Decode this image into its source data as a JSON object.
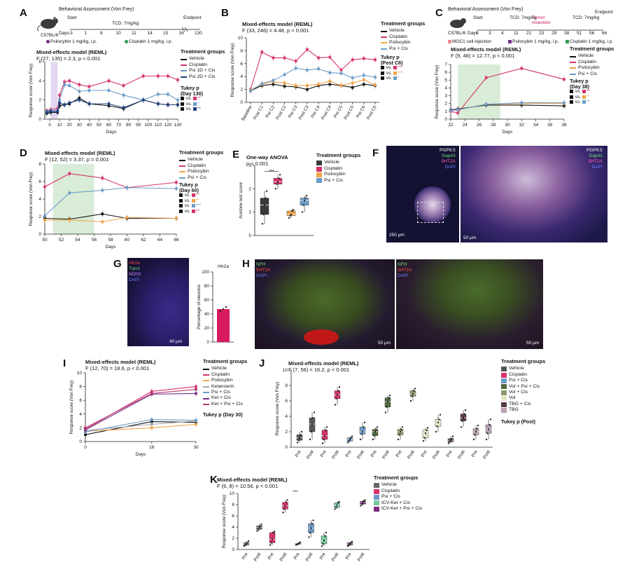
{
  "panels": {
    "A": {
      "letter": "A",
      "header": "Behavioral Assessment (Von Frey)",
      "strain": "C57BL/6",
      "timeline_words": {
        "start": "Start",
        "days": "Days",
        "tcd": "TCD: 7mg/kg",
        "endpoint": "Endpoint"
      },
      "timeline_days": [
        "-3",
        "1",
        "8",
        "10",
        "11",
        "14",
        "15",
        "16",
        "130"
      ],
      "injections": [
        "Psilocybin 1 mg/kg, i.p.",
        "Cisplatin 1 mg/kg, i.p."
      ],
      "stat_title": "Mixed-effects model (REML)",
      "stat_line": "F (27, 135) = 2.3, p < 0.001",
      "legend_title": "Treatment groups",
      "tukey_title": "Tukey p",
      "tukey_sub": "(Day 130)",
      "tukey_rows": [
        [
          "vs.",
          "**"
        ],
        [
          "vs.",
          "*"
        ],
        [
          "vs.",
          "**"
        ]
      ],
      "colors": [
        "#111111",
        "#d6336c",
        "#6b9bc8",
        "#1f3f7a"
      ]
    },
    "B": {
      "letter": "B",
      "stat_title": "Mixed-effects model (REML)",
      "stat_line": "F (33, 246) = 4.48, p < 0.001",
      "legend_title": "Treatment groups",
      "tukey_title": "Tukey p",
      "tukey_sub": "(Post C6)",
      "tukey_rows": [
        [
          "vs.",
          "***"
        ],
        [
          "vs.",
          "***"
        ],
        [
          "vs.",
          "*"
        ]
      ]
    },
    "C": {
      "letter": "C",
      "header": "Behavioral Assessment (Von Frey)",
      "strain": "C57BL/6",
      "timeline_words": {
        "start": "Start",
        "days": "Days",
        "tcd": "TCD: 7mg/kg",
        "tumor": "Tumor resection",
        "tcd2": "TCD: 7mg/kg",
        "endpoint": "Endpoint"
      },
      "timeline_days": [
        "0",
        "3",
        "4",
        "11",
        "21",
        "23",
        "29",
        "38",
        "51",
        "56",
        "66"
      ],
      "injections": [
        "MOC1 cell injection",
        "Psilocybin 1 mg/kg, i.p.",
        "Cisplatin 1 mg/kg, i.p."
      ],
      "stat_title": "Mixed-effects model (REML)",
      "stat_line": "F (9, 48) = 12.77, p < 0.001",
      "legend_title": "Treatment groups",
      "tukey_title": "Tukey p",
      "tukey_sub": "(Day 38)",
      "tukey_rows": [
        [
          "vs.",
          "**"
        ],
        [
          "vs.",
          "**"
        ],
        [
          "vs.",
          "**"
        ]
      ]
    },
    "D": {
      "letter": "D",
      "stat_title": "Mixed-effects model (REML)",
      "stat_line": "F (12, 52) = 3.37, p = 0.001",
      "legend_title": "Treatment groups",
      "tukey_title": "Tukey p",
      "tukey_sub": "(Day 60)",
      "tukey_rows": [
        [
          "vs.",
          "**"
        ],
        [
          "vs.",
          "**"
        ],
        [
          "vs.",
          "***"
        ],
        [
          "vs.",
          "**"
        ]
      ]
    },
    "E": {
      "letter": "E",
      "stat_title": "One-way ANOVA",
      "stat_line": "p < 0.001",
      "legend_title": "Treatment groups",
      "sig": "***"
    },
    "F": {
      "letter": "F",
      "labels": [
        "PGP9.5",
        "Gap43",
        "5HT2A",
        "DAPI"
      ],
      "scale_left": "250 μm",
      "scale_right": "50 μm"
    },
    "G": {
      "letter": "G",
      "labels": [
        "Htr2a",
        "Trpv1",
        "Nf200",
        "DAPI"
      ],
      "scale": "40 μm"
    },
    "H": {
      "letter": "H",
      "labels": [
        "NFH",
        "5HT2A",
        "DAPI"
      ],
      "scale": "50 μm"
    },
    "I": {
      "letter": "I",
      "stat_title": "Mixed-effects model (REML)",
      "stat_line": "F (12, 70) = 18.6, p < 0.001",
      "legend_title": "Treatment groups",
      "tukey_title": "Tukey p (Day 30)"
    },
    "J": {
      "letter": "J",
      "stat_title": "Mixed-effects model (REML)",
      "stat_line": "F (7, 56) = 16.2, p < 0.001",
      "legend_title": "Treatment groups",
      "tukey_title": "Tukey p (Post)"
    },
    "K": {
      "letter": "K",
      "stat_title": "Mixed-effects model (REML)",
      "stat_line": "F (6, 8) = 10.56, p < 0.001",
      "legend_title": "Treatment groups",
      "sig": "***"
    }
  },
  "chart_data": [
    {
      "id": "A",
      "type": "line",
      "xlabel": "Days",
      "ylabel": "Response score (Von Frey)",
      "xlim": [
        -5,
        130
      ],
      "ylim": [
        0,
        6
      ],
      "x": [
        -3,
        1,
        8,
        10,
        15,
        20,
        30,
        40,
        60,
        75,
        95,
        110,
        120,
        130
      ],
      "xticks": [
        0,
        10,
        20,
        30,
        40,
        50,
        60,
        70,
        80,
        90,
        100,
        110,
        120,
        130
      ],
      "yticks": [
        0,
        2,
        4,
        6
      ],
      "shade": [
        1,
        8
      ],
      "series": [
        {
          "name": "Vehicle",
          "color": "#111111",
          "values": [
            0.6,
            0.7,
            0.7,
            1.4,
            1.5,
            1.6,
            2.2,
            1.6,
            1.4,
            1.1,
            2.0,
            1.6,
            1.5,
            1.5
          ]
        },
        {
          "name": "Cisplatin",
          "color": "#d6336c",
          "values": [
            0.9,
            1.0,
            1.1,
            2.5,
            3.9,
            4.0,
            3.6,
            3.4,
            4.0,
            3.5,
            4.5,
            4.5,
            4.5,
            4.1
          ]
        },
        {
          "name": "Psi 1D + Cis",
          "color": "#6b9bc8",
          "values": [
            0.8,
            0.9,
            0.9,
            2.0,
            3.6,
            3.5,
            2.9,
            3.0,
            3.0,
            2.5,
            2.0,
            2.6,
            2.6,
            2.0
          ]
        },
        {
          "name": "Psi 2D + Cis",
          "color": "#1f3f7a",
          "values": [
            0.7,
            0.8,
            0.8,
            1.7,
            1.5,
            1.7,
            2.0,
            1.6,
            1.6,
            1.2,
            2.0,
            1.6,
            1.5,
            1.5
          ]
        }
      ]
    },
    {
      "id": "B",
      "type": "line",
      "ylabel": "Response score (Von Frey)",
      "ylim": [
        0,
        10
      ],
      "categories": [
        "Baseline",
        "Post C1",
        "Pre C2",
        "Post C2",
        "Pre C3",
        "Post C3",
        "Pre C4",
        "Post C4",
        "Pre C5",
        "Post C5",
        "Pre C6",
        "Post C6"
      ],
      "yticks": [
        0,
        2,
        4,
        6,
        8,
        10
      ],
      "series": [
        {
          "name": "Vehicle",
          "color": "#111111",
          "values": [
            1.8,
            2.6,
            2.8,
            2.5,
            2.4,
            2.0,
            2.6,
            2.8,
            2.6,
            2.3,
            2.8,
            2.6
          ]
        },
        {
          "name": "Cisplatin",
          "color": "#d6336c",
          "values": [
            2.0,
            7.8,
            6.9,
            6.9,
            6.4,
            8.2,
            6.9,
            7.0,
            5.0,
            6.6,
            6.8,
            6.6
          ]
        },
        {
          "name": "Psilocybin",
          "color": "#f0a44a",
          "values": [
            1.9,
            2.8,
            3.2,
            3.0,
            2.6,
            2.6,
            2.8,
            3.3,
            2.6,
            3.0,
            3.5,
            2.7
          ]
        },
        {
          "name": "Psi + Cis",
          "color": "#6b9bc8",
          "values": [
            1.8,
            2.9,
            3.4,
            4.3,
            5.3,
            5.0,
            5.2,
            4.6,
            4.5,
            3.8,
            4.2,
            3.9
          ]
        }
      ]
    },
    {
      "id": "C",
      "type": "line",
      "xlabel": "Days",
      "ylabel": "Response score (Von Frey)",
      "xlim": [
        22,
        38
      ],
      "ylim": [
        0,
        7
      ],
      "x": [
        22,
        23,
        27,
        32,
        38
      ],
      "xticks": [
        22,
        24,
        26,
        28,
        30,
        32,
        34,
        36,
        38
      ],
      "yticks": [
        0,
        1,
        2,
        3,
        4,
        5,
        6,
        7
      ],
      "shade": [
        23,
        29
      ],
      "series": [
        {
          "name": "Vehicle",
          "color": "#111111",
          "values": [
            1.2,
            1.3,
            1.8,
            1.8,
            1.7
          ]
        },
        {
          "name": "Cisplatin",
          "color": "#d6336c",
          "values": [
            1.0,
            0.8,
            5.3,
            6.5,
            5.1
          ]
        },
        {
          "name": "Psilocybin",
          "color": "#f0a44a",
          "values": [
            1.1,
            1.2,
            1.9,
            2.0,
            2.0
          ]
        },
        {
          "name": "Psi + Cis",
          "color": "#6b9bc8",
          "values": [
            1.1,
            1.2,
            1.9,
            2.1,
            2.1
          ]
        }
      ]
    },
    {
      "id": "D",
      "type": "line",
      "xlabel": "Days",
      "ylabel": "Response score (Von Frey)",
      "xlim": [
        50,
        66
      ],
      "ylim": [
        0,
        8
      ],
      "x": [
        50,
        53,
        57,
        60,
        66
      ],
      "xticks": [
        50,
        52,
        54,
        56,
        58,
        60,
        62,
        64,
        66
      ],
      "yticks": [
        0,
        2,
        4,
        6,
        8
      ],
      "shade": [
        51,
        56
      ],
      "series": [
        {
          "name": "Vehicle",
          "color": "#111111",
          "values": [
            1.8,
            1.7,
            2.3,
            1.8,
            1.8
          ]
        },
        {
          "name": "Cisplatin",
          "color": "#d6336c",
          "values": [
            5.4,
            6.9,
            6.4,
            5.3,
            5.9
          ]
        },
        {
          "name": "Psilocybin",
          "color": "#f0a44a",
          "values": [
            1.6,
            1.6,
            1.4,
            1.9,
            1.8
          ]
        },
        {
          "name": "Psi + Cis",
          "color": "#6b9bc8",
          "values": [
            2.1,
            4.7,
            5.0,
            5.3,
            5.2
          ]
        }
      ]
    },
    {
      "id": "E",
      "type": "box",
      "ylabel": "Acetone test score",
      "ylim": [
        0,
        3
      ],
      "yticks": [
        0,
        1,
        2,
        3
      ],
      "groups": [
        {
          "name": "Vehicle",
          "color": "#3a3a3a",
          "min": 0.5,
          "q1": 0.9,
          "median": 1.3,
          "q3": 1.6,
          "max": 1.9
        },
        {
          "name": "Cisplatin",
          "color": "#d6336c",
          "min": 2.0,
          "q1": 2.2,
          "median": 2.3,
          "q3": 2.45,
          "max": 2.6
        },
        {
          "name": "Psilocybin",
          "color": "#f0a44a",
          "min": 0.75,
          "q1": 0.85,
          "median": 0.9,
          "q3": 1.05,
          "max": 1.1
        },
        {
          "name": "Psi + Cis",
          "color": "#6b9bc8",
          "min": 1.0,
          "q1": 1.3,
          "median": 1.5,
          "q3": 1.6,
          "max": 1.7
        }
      ]
    },
    {
      "id": "G",
      "type": "bar",
      "title": "Htr2a",
      "ylabel": "Percentage of neurons",
      "ylim": [
        0,
        100
      ],
      "yticks": [
        0,
        20,
        40,
        60,
        80,
        100
      ],
      "categories": [
        ""
      ],
      "values": [
        47
      ],
      "color": "#d81b60"
    },
    {
      "id": "I",
      "type": "line",
      "xlabel": "Days",
      "ylabel": "Response score (Von Frey)",
      "xlim": [
        0,
        30
      ],
      "ylim": [
        0,
        10
      ],
      "x": [
        0,
        18,
        30
      ],
      "xticks": [
        0,
        18,
        30
      ],
      "yticks": [
        0,
        2,
        4,
        6,
        8,
        10
      ],
      "series": [
        {
          "name": "Vehicle",
          "color": "#111111",
          "values": [
            1.0,
            2.9,
            2.8
          ]
        },
        {
          "name": "Cisplatin",
          "color": "#d6336c",
          "values": [
            1.8,
            7.3,
            8.0
          ]
        },
        {
          "name": "Psilocybin",
          "color": "#f0a44a",
          "values": [
            1.5,
            2.0,
            2.5
          ]
        },
        {
          "name": "Ketanserin",
          "color": "#a8a8a8",
          "values": [
            1.6,
            2.5,
            3.0
          ]
        },
        {
          "name": "Psi + Cis",
          "color": "#6b9bc8",
          "values": [
            1.4,
            3.2,
            3.1
          ]
        },
        {
          "name": "Ket + Cis",
          "color": "#6f2e8a",
          "values": [
            1.7,
            6.9,
            7.0
          ]
        },
        {
          "name": "Ket + Psi + Cis",
          "color": "#b3386e",
          "values": [
            2.0,
            7.0,
            7.6
          ]
        }
      ]
    },
    {
      "id": "J",
      "type": "box",
      "ylabel": "Response score (Von Frey)",
      "ylim": [
        0,
        10
      ],
      "yticks": [
        0,
        2,
        4,
        6,
        8,
        10
      ],
      "categories": [
        "Pre",
        "Post",
        "Pre",
        "Post",
        "Pre",
        "Post",
        "Pre",
        "Post",
        "Pre",
        "Post",
        "Pre",
        "Post",
        "Pre",
        "Post",
        "Pre",
        "Post"
      ],
      "groups": [
        {
          "name": "Vehicle",
          "color": "#555555",
          "pre": [
            0.6,
            0.9,
            1.2,
            1.6,
            2.0
          ],
          "post": [
            1.0,
            2.0,
            3.0,
            3.8,
            4.5
          ]
        },
        {
          "name": "Cisplatin",
          "color": "#d6336c",
          "pre": [
            0.5,
            1.0,
            1.5,
            2.2,
            2.6
          ],
          "post": [
            5.5,
            6.3,
            6.8,
            7.3,
            7.8
          ]
        },
        {
          "name": "Psi + Cis",
          "color": "#6b9bc8",
          "pre": [
            0.6,
            0.8,
            1.0,
            1.2,
            1.4
          ],
          "post": [
            1.0,
            1.7,
            2.0,
            2.6,
            3.2
          ]
        },
        {
          "name": "Vol + Psi + Cis",
          "color": "#4f6a3b",
          "pre": [
            1.0,
            1.5,
            2.0,
            2.3,
            2.6
          ],
          "post": [
            4.5,
            5.2,
            5.9,
            6.4,
            6.7
          ]
        },
        {
          "name": "Vol + Cis",
          "color": "#8a9a6a",
          "pre": [
            1.0,
            1.6,
            2.0,
            2.3,
            2.6
          ],
          "post": [
            6.0,
            6.6,
            6.9,
            7.3,
            7.6
          ]
        },
        {
          "name": "Vol",
          "color": "#e6e4c8",
          "pre": [
            0.8,
            1.2,
            1.8,
            2.2,
            2.5
          ],
          "post": [
            2.0,
            2.7,
            3.2,
            3.6,
            4.2
          ]
        },
        {
          "name": "TBG + Cis",
          "color": "#5a3a4f",
          "pre": [
            0.5,
            0.7,
            0.9,
            1.1,
            1.4
          ],
          "post": [
            2.6,
            3.4,
            3.8,
            4.3,
            4.8
          ]
        },
        {
          "name": "TBG",
          "color": "#b8a2b4",
          "pre": [
            1.0,
            1.6,
            2.0,
            2.4,
            2.8
          ],
          "post": [
            1.0,
            1.8,
            2.3,
            2.9,
            3.6
          ]
        }
      ]
    },
    {
      "id": "K",
      "type": "box",
      "ylabel": "Response score (Von Frey)",
      "ylim": [
        0,
        10
      ],
      "yticks": [
        0,
        2,
        4,
        6,
        8,
        10
      ],
      "groups": [
        {
          "name": "Vehicle",
          "color": "#666666",
          "pre": [
            0.6,
            0.8,
            1.0,
            1.2,
            1.5
          ],
          "post": [
            3.3,
            3.6,
            3.9,
            4.2,
            4.5
          ]
        },
        {
          "name": "Cisplatin",
          "color": "#d6336c",
          "pre": [
            0.8,
            1.2,
            1.8,
            3.0,
            3.2
          ],
          "post": [
            6.6,
            7.2,
            7.8,
            8.4,
            8.8
          ]
        },
        {
          "name": "Psi + Cis",
          "color": "#6b9bc8",
          "pre": [
            0.8,
            0.9,
            1.0,
            1.1,
            1.3
          ],
          "post": [
            2.2,
            3.0,
            3.8,
            4.6,
            5.2
          ]
        },
        {
          "name": "ICV-Ket + Cis",
          "color": "#76c9a0",
          "pre": [
            0.6,
            1.0,
            1.6,
            2.4,
            3.0
          ],
          "post": [
            7.2,
            7.5,
            7.9,
            8.3,
            8.5
          ]
        },
        {
          "name": "ICV-Ket + Psi + Cis",
          "color": "#7b2a7e",
          "pre": [
            0.6,
            0.8,
            1.0,
            1.2,
            1.4
          ],
          "post": [
            7.8,
            8.1,
            8.4,
            8.6,
            8.8
          ]
        }
      ]
    }
  ]
}
